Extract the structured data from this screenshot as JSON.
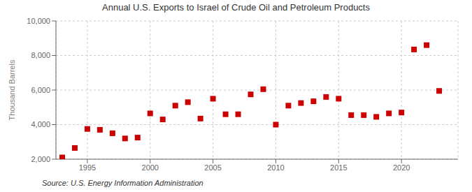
{
  "chart_data": {
    "type": "scatter",
    "title": "Annual U.S. Exports to Israel of Crude Oil and Petroleum Products",
    "ylabel": "Thousand Barrels",
    "annotations": [
      "Source: U.S. Energy Information Administration"
    ],
    "x": [
      1993,
      1994,
      1995,
      1996,
      1997,
      1998,
      1999,
      2000,
      2001,
      2002,
      2003,
      2004,
      2005,
      2006,
      2007,
      2008,
      2009,
      2010,
      2011,
      2012,
      2013,
      2014,
      2015,
      2016,
      2017,
      2018,
      2019,
      2020,
      2021,
      2022,
      2023
    ],
    "values": [
      2100,
      2650,
      3750,
      3700,
      3500,
      3200,
      3250,
      4650,
      4300,
      5100,
      5300,
      4350,
      5500,
      4600,
      4600,
      5750,
      6050,
      4000,
      5100,
      5250,
      5350,
      5600,
      5500,
      4550,
      4550,
      4450,
      4650,
      4700,
      8350,
      8600,
      5950
    ],
    "color": "#cc0000",
    "marker": "square",
    "xlim": [
      1992.5,
      2024.5
    ],
    "ylim": [
      2000,
      10000
    ],
    "xticks": [
      1995,
      2000,
      2005,
      2010,
      2015,
      2020
    ],
    "yticks": [
      {
        "value": 2000,
        "label": "2,000"
      },
      {
        "value": 4000,
        "label": "4,000"
      },
      {
        "value": 6000,
        "label": "6,000"
      },
      {
        "value": 8000,
        "label": "8,000"
      },
      {
        "value": 10000,
        "label": "10,000"
      }
    ],
    "grid": true
  }
}
